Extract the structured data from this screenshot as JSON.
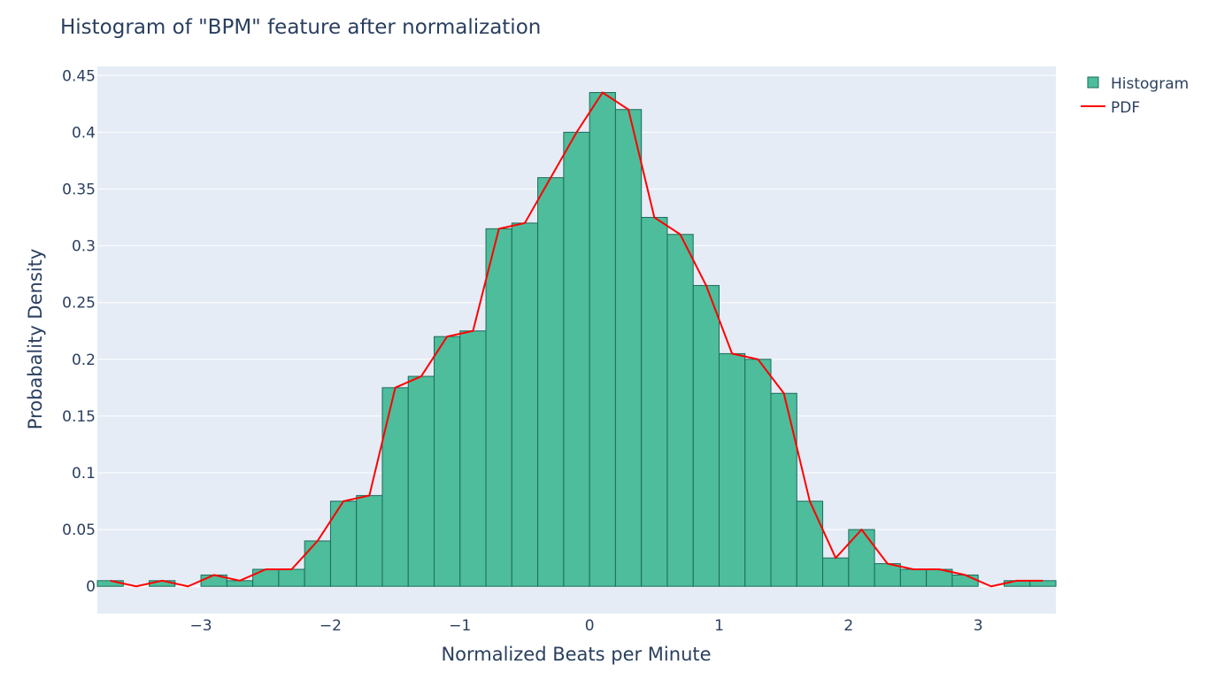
{
  "chart_data": {
    "type": "bar",
    "title": "Histogram of \"BPM\" feature after normalization",
    "xlabel": "Normalized Beats per Minute",
    "ylabel": "Probabality Density",
    "xlim": [
      -3.8,
      3.6
    ],
    "ylim": [
      -0.024,
      0.458
    ],
    "grid": true,
    "legend_position": "top-right",
    "x_ticks": [
      {
        "value": -3,
        "label": "−3"
      },
      {
        "value": -2,
        "label": "−2"
      },
      {
        "value": -1,
        "label": "−1"
      },
      {
        "value": 0,
        "label": "0"
      },
      {
        "value": 1,
        "label": "1"
      },
      {
        "value": 2,
        "label": "2"
      },
      {
        "value": 3,
        "label": "3"
      }
    ],
    "y_ticks": [
      {
        "value": 0,
        "label": "0"
      },
      {
        "value": 0.05,
        "label": "0.05"
      },
      {
        "value": 0.1,
        "label": "0.1"
      },
      {
        "value": 0.15,
        "label": "0.15"
      },
      {
        "value": 0.2,
        "label": "0.2"
      },
      {
        "value": 0.25,
        "label": "0.25"
      },
      {
        "value": 0.3,
        "label": "0.3"
      },
      {
        "value": 0.35,
        "label": "0.35"
      },
      {
        "value": 0.4,
        "label": "0.4"
      },
      {
        "value": 0.45,
        "label": "0.45"
      }
    ],
    "series": [
      {
        "name": "Histogram",
        "kind": "bar",
        "color": "#4dbd9b",
        "edge_color": "#1e6b5a",
        "bin_edges": [
          -3.8,
          -3.6,
          -3.4,
          -3.2,
          -3.0,
          -2.8,
          -2.6,
          -2.4,
          -2.2,
          -2.0,
          -1.8,
          -1.6,
          -1.4,
          -1.2,
          -1.0,
          -0.8,
          -0.6,
          -0.4,
          -0.2,
          0.0,
          0.2,
          0.4,
          0.6,
          0.8,
          1.0,
          1.2,
          1.4,
          1.6,
          1.8,
          2.0,
          2.2,
          2.4,
          2.6,
          2.8,
          3.0,
          3.2,
          3.4,
          3.6
        ],
        "values": [
          0.005,
          0,
          0.005,
          0,
          0.01,
          0.005,
          0.015,
          0.015,
          0.04,
          0.075,
          0.08,
          0.175,
          0.185,
          0.22,
          0.225,
          0.315,
          0.32,
          0.36,
          0.4,
          0.435,
          0.42,
          0.325,
          0.31,
          0.265,
          0.205,
          0.2,
          0.17,
          0.075,
          0.025,
          0.05,
          0.02,
          0.015,
          0.015,
          0.01,
          0,
          0.005,
          0.005
        ]
      },
      {
        "name": "PDF",
        "kind": "line",
        "color": "#ff0000",
        "x": [
          -3.7,
          -3.5,
          -3.3,
          -3.1,
          -2.9,
          -2.7,
          -2.5,
          -2.3,
          -2.1,
          -1.9,
          -1.7,
          -1.5,
          -1.3,
          -1.1,
          -0.9,
          -0.7,
          -0.5,
          -0.3,
          -0.1,
          0.1,
          0.3,
          0.5,
          0.7,
          0.9,
          1.1,
          1.3,
          1.5,
          1.7,
          1.9,
          2.1,
          2.3,
          2.5,
          2.7,
          2.9,
          3.1,
          3.3,
          3.5
        ],
        "y": [
          0.005,
          0,
          0.005,
          0,
          0.01,
          0.005,
          0.015,
          0.015,
          0.04,
          0.075,
          0.08,
          0.175,
          0.185,
          0.22,
          0.225,
          0.315,
          0.32,
          0.36,
          0.4,
          0.435,
          0.42,
          0.325,
          0.31,
          0.265,
          0.205,
          0.2,
          0.17,
          0.075,
          0.025,
          0.05,
          0.02,
          0.015,
          0.015,
          0.01,
          0,
          0.005,
          0.005
        ]
      }
    ]
  }
}
